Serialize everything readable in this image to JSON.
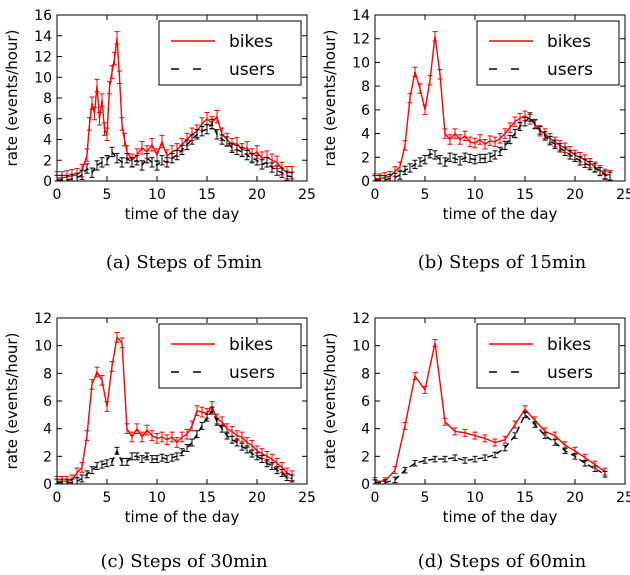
{
  "chart_data": [
    {
      "type": "line",
      "caption": "(a) Steps of 5min",
      "xlabel": "time of the day",
      "ylabel": "rate (events/hour)",
      "xlim": [
        0,
        25
      ],
      "ylim": [
        0,
        16
      ],
      "xticks": [
        "0",
        "5",
        "10",
        "15",
        "20",
        "25"
      ],
      "yticks": [
        "0",
        "2",
        "4",
        "6",
        "8",
        "10",
        "12",
        "14",
        "16"
      ],
      "legend": "top-right",
      "series": [
        {
          "name": "bikes",
          "color": "#ff0000",
          "style": "solid",
          "x": [
            0,
            0.5,
            1,
            1.5,
            2,
            2.5,
            3,
            3.25,
            3.5,
            3.75,
            4,
            4.25,
            4.5,
            4.75,
            5,
            5.25,
            5.5,
            5.75,
            6,
            6.25,
            6.5,
            6.75,
            7,
            7.5,
            8,
            8.5,
            9,
            9.5,
            10,
            10.5,
            11,
            11.5,
            12,
            12.5,
            13,
            13.5,
            14,
            14.5,
            15,
            15.5,
            16,
            16.5,
            17,
            17.5,
            18,
            18.5,
            19,
            19.5,
            20,
            20.5,
            21,
            21.5,
            22,
            22.5,
            23,
            23.5
          ],
          "y": [
            0.3,
            0.3,
            0.4,
            0.5,
            0.6,
            1.0,
            2.5,
            5.5,
            7.5,
            6.5,
            9.2,
            6.0,
            7.8,
            5.0,
            4.5,
            9.0,
            10.5,
            11.8,
            13.8,
            10.0,
            5.5,
            4.0,
            2.8,
            2.0,
            2.5,
            3.2,
            2.8,
            3.5,
            2.5,
            3.8,
            2.4,
            2.8,
            3.0,
            3.5,
            4.0,
            4.5,
            4.8,
            5.5,
            6.0,
            5.6,
            6.2,
            4.5,
            4.0,
            3.5,
            3.6,
            3.0,
            3.2,
            2.5,
            2.8,
            2.2,
            2.3,
            2.0,
            1.8,
            1.2,
            0.8,
            0.8
          ],
          "err": 0.6
        },
        {
          "name": "users",
          "color": "#000000",
          "style": "dashed",
          "x": [
            0,
            0.5,
            1,
            1.5,
            2,
            2.5,
            3,
            3.5,
            4,
            4.5,
            5,
            5.5,
            6,
            6.5,
            7,
            7.5,
            8,
            8.5,
            9,
            9.5,
            10,
            10.5,
            11,
            11.5,
            12,
            12.5,
            13,
            13.5,
            14,
            14.5,
            15,
            15.5,
            16,
            16.5,
            17,
            17.5,
            18,
            18.5,
            19,
            19.5,
            20,
            20.5,
            21,
            21.5,
            22,
            22.5,
            23,
            23.5
          ],
          "y": [
            0.1,
            0.1,
            0.1,
            0.2,
            0.3,
            0.6,
            1.2,
            0.8,
            1.5,
            1.8,
            2.0,
            2.8,
            2.2,
            1.8,
            2.2,
            1.8,
            2.0,
            1.5,
            2.2,
            1.8,
            1.5,
            2.0,
            1.8,
            2.2,
            2.5,
            3.0,
            3.5,
            4.0,
            4.5,
            4.8,
            5.0,
            5.5,
            4.5,
            4.0,
            3.8,
            3.2,
            3.0,
            2.8,
            2.5,
            2.2,
            2.0,
            1.6,
            1.8,
            1.3,
            1.0,
            0.8,
            0.5,
            0.4
          ],
          "err": 0.45
        }
      ]
    },
    {
      "type": "line",
      "caption": "(b) Steps of 15min",
      "xlabel": "time of the day",
      "ylabel": "rate (events/hour)",
      "xlim": [
        0,
        25
      ],
      "ylim": [
        0,
        14
      ],
      "xticks": [
        "0",
        "5",
        "10",
        "15",
        "20",
        "25"
      ],
      "yticks": [
        "0",
        "2",
        "4",
        "6",
        "8",
        "10",
        "12",
        "14"
      ],
      "legend": "top-right",
      "series": [
        {
          "name": "bikes",
          "color": "#ff0000",
          "style": "solid",
          "x": [
            0,
            0.5,
            1,
            1.5,
            2,
            2.5,
            3,
            3.5,
            4,
            4.5,
            5,
            5.5,
            6,
            6.5,
            7,
            7.5,
            8,
            8.5,
            9,
            9.5,
            10,
            10.5,
            11,
            11.5,
            12,
            12.5,
            13,
            13.5,
            14,
            14.5,
            15,
            15.5,
            16,
            16.5,
            17,
            17.5,
            18,
            18.5,
            19,
            19.5,
            20,
            20.5,
            21,
            21.5,
            22,
            22.5,
            23,
            23.5
          ],
          "y": [
            0.2,
            0.2,
            0.3,
            0.4,
            0.8,
            1.2,
            3.0,
            7.0,
            9.2,
            7.8,
            6.0,
            8.5,
            12.2,
            9.0,
            4.0,
            3.5,
            4.0,
            3.5,
            3.8,
            3.3,
            3.2,
            3.5,
            3.1,
            3.4,
            3.3,
            3.6,
            4.0,
            4.5,
            5.0,
            5.3,
            5.5,
            5.2,
            4.8,
            4.2,
            4.0,
            3.6,
            3.3,
            3.0,
            2.8,
            2.5,
            2.2,
            2.0,
            1.8,
            1.5,
            1.2,
            0.9,
            0.6,
            0.5
          ],
          "err": 0.4
        },
        {
          "name": "users",
          "color": "#000000",
          "style": "dashed",
          "x": [
            0,
            0.5,
            1,
            1.5,
            2,
            2.5,
            3,
            3.5,
            4,
            4.5,
            5,
            5.5,
            6,
            6.5,
            7,
            7.5,
            8,
            8.5,
            9,
            9.5,
            10,
            10.5,
            11,
            11.5,
            12,
            12.5,
            13,
            13.5,
            14,
            14.5,
            15,
            15.5,
            16,
            16.5,
            17,
            17.5,
            18,
            18.5,
            19,
            19.5,
            20,
            20.5,
            21,
            21.5,
            22,
            22.5,
            23,
            23.5
          ],
          "y": [
            0.1,
            0.1,
            0.1,
            0.2,
            0.3,
            0.5,
            0.9,
            1.1,
            1.4,
            1.6,
            1.8,
            2.3,
            2.2,
            1.8,
            1.6,
            2.0,
            1.9,
            1.7,
            2.0,
            1.9,
            1.8,
            1.9,
            1.9,
            2.0,
            2.2,
            2.5,
            3.0,
            3.5,
            4.0,
            4.6,
            5.0,
            5.4,
            4.8,
            4.3,
            3.8,
            3.4,
            3.1,
            2.8,
            2.5,
            2.2,
            2.0,
            1.7,
            1.5,
            1.3,
            1.1,
            0.8,
            0.5,
            0.4
          ],
          "err": 0.35
        }
      ]
    },
    {
      "type": "line",
      "caption": "(c) Steps of 30min",
      "xlabel": "time of the day",
      "ylabel": "rate (events/hour)",
      "xlim": [
        0,
        25
      ],
      "ylim": [
        0,
        12
      ],
      "xticks": [
        "0",
        "5",
        "10",
        "15",
        "20",
        "25"
      ],
      "yticks": [
        "0",
        "2",
        "4",
        "6",
        "8",
        "10",
        "12"
      ],
      "legend": "top-right",
      "series": [
        {
          "name": "bikes",
          "color": "#ff0000",
          "style": "solid",
          "x": [
            0,
            0.5,
            1,
            1.5,
            2,
            2.5,
            3,
            3.5,
            4,
            4.5,
            5,
            5.5,
            6,
            6.5,
            7,
            7.5,
            8,
            8.5,
            9,
            9.5,
            10,
            10.5,
            11,
            11.5,
            12,
            12.5,
            13,
            13.5,
            14,
            14.5,
            15,
            15.5,
            16,
            16.5,
            17,
            17.5,
            18,
            18.5,
            19,
            19.5,
            20,
            20.5,
            21,
            21.5,
            22,
            22.5,
            23,
            23.5
          ],
          "y": [
            0.2,
            0.2,
            0.2,
            0.3,
            0.8,
            1.2,
            3.5,
            7.2,
            8.1,
            7.5,
            5.6,
            8.5,
            10.6,
            10.2,
            4.0,
            3.4,
            4.0,
            3.4,
            3.9,
            3.5,
            3.3,
            3.4,
            3.2,
            3.4,
            3.0,
            3.4,
            3.6,
            4.2,
            5.3,
            5.2,
            5.1,
            5.6,
            4.7,
            4.5,
            4.0,
            3.8,
            3.5,
            3.4,
            3.0,
            2.8,
            2.4,
            2.2,
            2.0,
            1.8,
            1.5,
            1.2,
            0.8,
            0.6
          ],
          "err": 0.35
        },
        {
          "name": "users",
          "color": "#000000",
          "style": "dashed",
          "x": [
            0,
            0.5,
            1,
            1.5,
            2,
            2.5,
            3,
            3.5,
            4,
            4.5,
            5,
            5.5,
            6,
            6.5,
            7,
            7.5,
            8,
            8.5,
            9,
            9.5,
            10,
            10.5,
            11,
            11.5,
            12,
            12.5,
            13,
            13.5,
            14,
            14.5,
            15,
            15.5,
            16,
            16.5,
            17,
            17.5,
            18,
            18.5,
            19,
            19.5,
            20,
            20.5,
            21,
            21.5,
            22,
            22.5,
            23,
            23.5
          ],
          "y": [
            0.1,
            0.1,
            0.1,
            0.1,
            0.2,
            0.4,
            0.7,
            1.0,
            1.3,
            1.4,
            1.5,
            1.6,
            2.4,
            1.6,
            1.6,
            2.0,
            2.0,
            1.8,
            2.0,
            1.8,
            1.8,
            1.9,
            1.8,
            1.9,
            2.0,
            2.3,
            2.6,
            3.0,
            3.6,
            4.2,
            4.8,
            5.3,
            4.5,
            4.0,
            3.5,
            3.2,
            3.0,
            2.7,
            2.5,
            2.2,
            2.0,
            1.8,
            1.5,
            1.3,
            1.0,
            0.8,
            0.5,
            0.4
          ],
          "err": 0.25
        }
      ]
    },
    {
      "type": "line",
      "caption": "(d) Steps of 60min",
      "xlabel": "time of the day",
      "ylabel": "rate (events/hour)",
      "xlim": [
        0,
        25
      ],
      "ylim": [
        0,
        12
      ],
      "xticks": [
        "0",
        "5",
        "10",
        "15",
        "20",
        "25"
      ],
      "yticks": [
        "0",
        "2",
        "4",
        "6",
        "8",
        "10",
        "12"
      ],
      "legend": "top-right",
      "series": [
        {
          "name": "bikes",
          "color": "#ff0000",
          "style": "solid",
          "x": [
            0,
            1,
            2,
            3,
            4,
            5,
            6,
            7,
            8,
            9,
            10,
            11,
            12,
            13,
            14,
            15,
            16,
            17,
            18,
            19,
            20,
            21,
            22,
            23
          ],
          "y": [
            0.2,
            0.2,
            1.0,
            4.2,
            7.8,
            6.8,
            10.2,
            4.5,
            3.8,
            3.7,
            3.5,
            3.3,
            3.0,
            3.2,
            4.3,
            5.4,
            4.6,
            3.8,
            3.5,
            2.8,
            2.4,
            1.9,
            1.4,
            0.9
          ],
          "err": 0.25
        },
        {
          "name": "users",
          "color": "#000000",
          "style": "dashed",
          "x": [
            0,
            1,
            2,
            3,
            4,
            5,
            6,
            7,
            8,
            9,
            10,
            11,
            12,
            13,
            14,
            15,
            16,
            17,
            18,
            19,
            20,
            21,
            22,
            23
          ],
          "y": [
            0.1,
            0.1,
            0.3,
            1.0,
            1.5,
            1.7,
            1.8,
            1.8,
            1.9,
            1.7,
            1.8,
            1.9,
            2.1,
            2.6,
            3.5,
            5.0,
            4.3,
            3.5,
            3.0,
            2.4,
            2.0,
            1.5,
            1.1,
            0.7
          ],
          "err": 0.2
        }
      ]
    }
  ]
}
